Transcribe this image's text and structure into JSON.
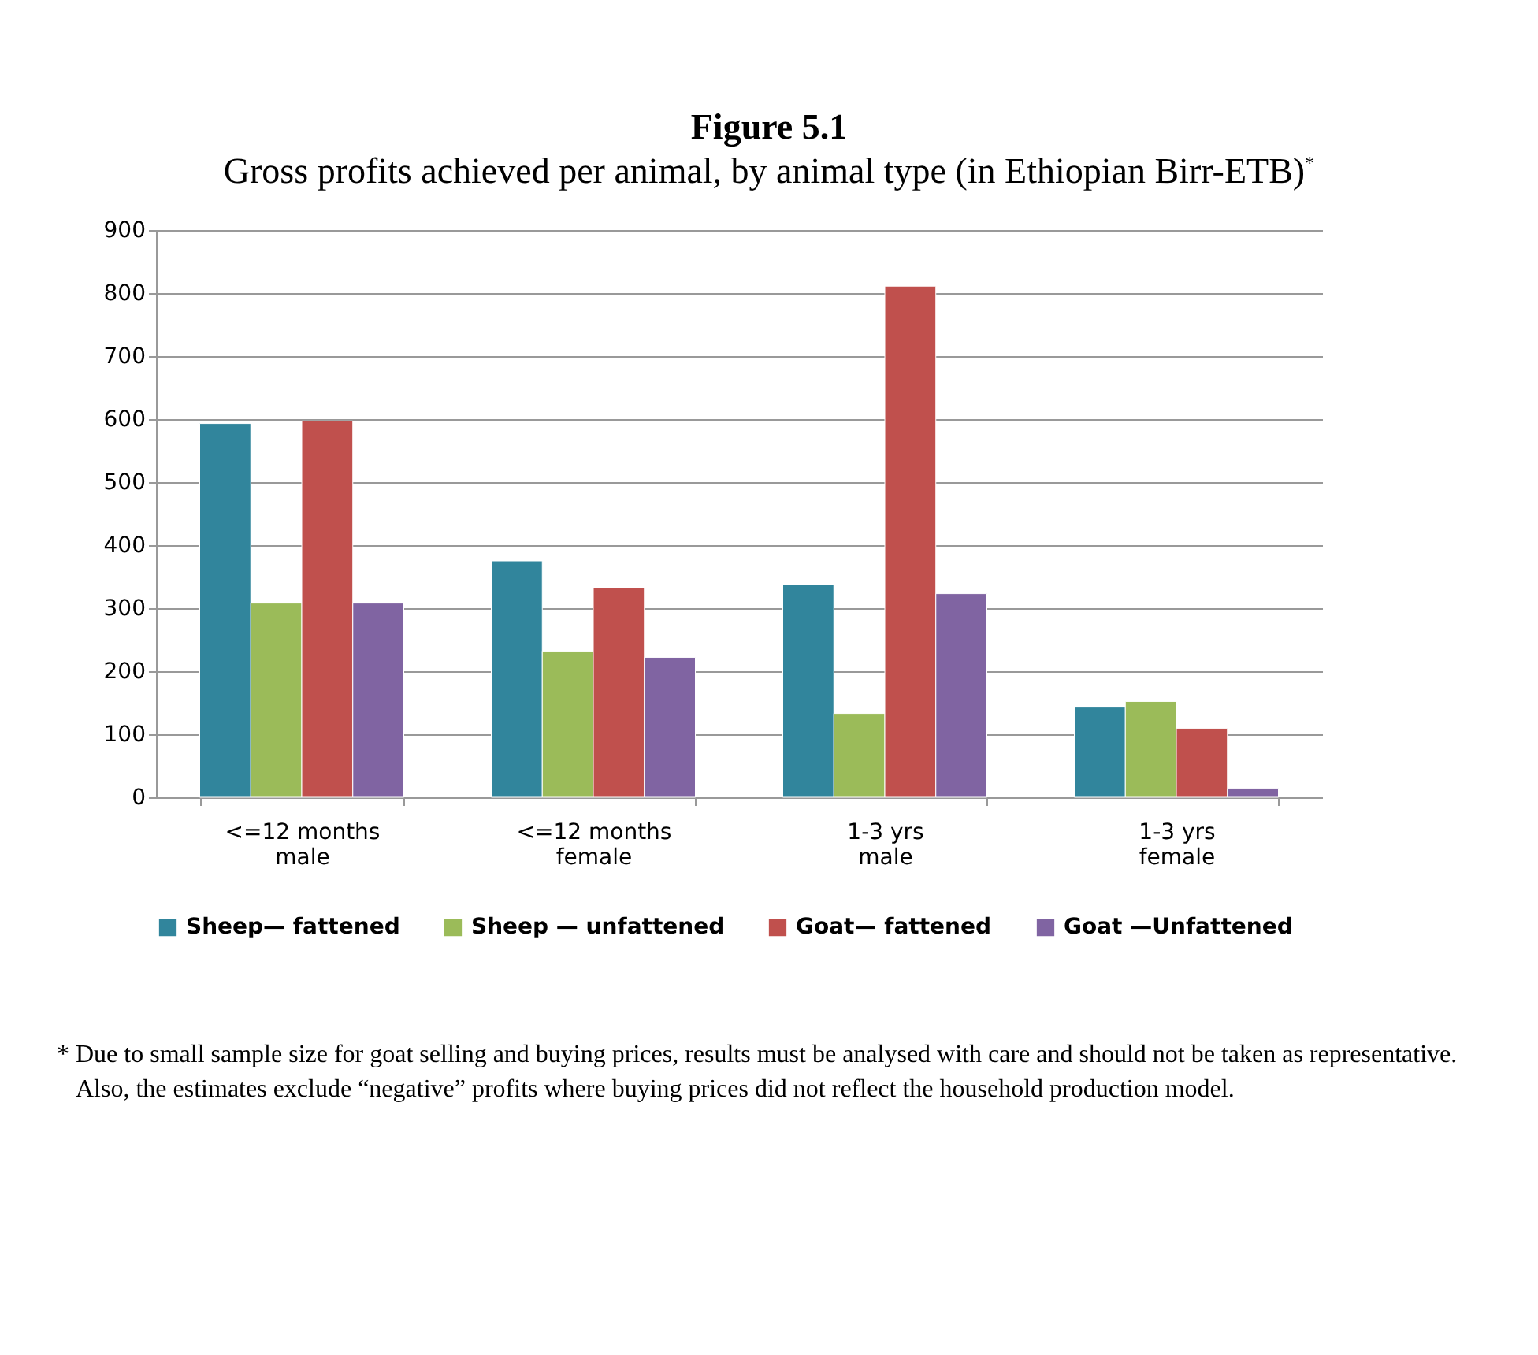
{
  "chart_data": {
    "type": "bar",
    "title": "Figure 5.1",
    "subtitle": "Gross profits achieved per animal, by animal type (in Ethiopian Birr-ETB)$^{*}$",
    "categories": [
      "<=12 months\nmale",
      "<=12 months\nfemale",
      "1-3 yrs\nmale",
      "1-3 yrs\nfemale"
    ],
    "series": [
      {
        "name": "Sheep— fattened",
        "color": "#31859c",
        "values": [
          593,
          375,
          337,
          143
        ]
      },
      {
        "name": "Sheep — unfattened",
        "color": "#9bbb59",
        "values": [
          308,
          232,
          133,
          152
        ]
      },
      {
        "name": "Goat— fattened",
        "color": "#c0504d",
        "values": [
          597,
          332,
          811,
          109
        ]
      },
      {
        "name": "Goat —Unfattened",
        "color": "#8064a2",
        "values": [
          308,
          222,
          323,
          14
        ]
      }
    ],
    "ylim": [
      0,
      900
    ],
    "yticks": [
      0,
      100,
      200,
      300,
      400,
      500,
      600,
      700,
      800,
      900
    ],
    "grid": "y",
    "legend": "bottom",
    "annotations": [
      "* Due to small sample size for goat selling and buying prices, results must be analysed with care and should not be taken as representative. Also, the estimates exclude “negative” profits where buying prices did not reflect the household production model."
    ]
  }
}
